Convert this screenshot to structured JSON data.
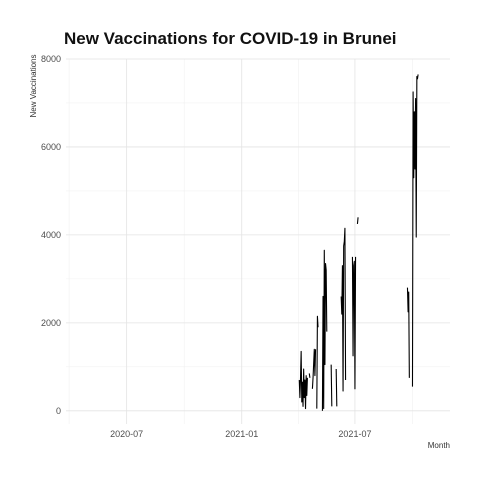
{
  "chart_data": {
    "type": "line",
    "title": "New Vaccinations for COVID-19 in Brunei",
    "xlabel": "Month",
    "ylabel": "New Vaccinations",
    "x_type": "date",
    "xlim": [
      "2020-03-26",
      "2021-11-30"
    ],
    "ylim": [
      -300,
      8000
    ],
    "x_ticks": [
      {
        "value": "2020-07-01",
        "label": "2020-07"
      },
      {
        "value": "2021-01-01",
        "label": "2021-01"
      },
      {
        "value": "2021-07-01",
        "label": "2021-07"
      }
    ],
    "y_ticks": [
      {
        "value": 0,
        "label": "0"
      },
      {
        "value": 2000,
        "label": "2000"
      },
      {
        "value": 4000,
        "label": "4000"
      },
      {
        "value": 6000,
        "label": "6000"
      },
      {
        "value": 8000,
        "label": "8000"
      }
    ],
    "grid": true,
    "legend": "none",
    "line_color": "#000000",
    "series": [
      {
        "segments": [
          [
            {
              "x": "2021-04-03",
              "y": 700
            },
            {
              "x": "2021-04-04",
              "y": 300
            },
            {
              "x": "2021-04-05",
              "y": 750
            },
            {
              "x": "2021-04-06",
              "y": 1350
            },
            {
              "x": "2021-04-07",
              "y": 200
            },
            {
              "x": "2021-04-08",
              "y": 650
            },
            {
              "x": "2021-04-09",
              "y": 100
            },
            {
              "x": "2021-04-10",
              "y": 950
            },
            {
              "x": "2021-04-11",
              "y": 300
            },
            {
              "x": "2021-04-12",
              "y": 700
            },
            {
              "x": "2021-04-13",
              "y": 50
            },
            {
              "x": "2021-04-14",
              "y": 800
            },
            {
              "x": "2021-04-15",
              "y": 350
            },
            {
              "x": "2021-04-16",
              "y": 750
            }
          ],
          [
            {
              "x": "2021-04-19",
              "y": 850
            },
            {
              "x": "2021-04-20",
              "y": 750
            }
          ],
          [
            {
              "x": "2021-04-24",
              "y": 500
            },
            {
              "x": "2021-04-25",
              "y": 750
            },
            {
              "x": "2021-04-27",
              "y": 1400
            },
            {
              "x": "2021-04-28",
              "y": 800
            },
            {
              "x": "2021-04-29",
              "y": 1400
            }
          ],
          [
            {
              "x": "2021-05-01",
              "y": 50
            },
            {
              "x": "2021-05-02",
              "y": 2150
            },
            {
              "x": "2021-05-03",
              "y": 1900
            }
          ],
          [
            {
              "x": "2021-05-10",
              "y": 0
            },
            {
              "x": "2021-05-11",
              "y": 2600
            },
            {
              "x": "2021-05-12",
              "y": 50
            },
            {
              "x": "2021-05-13",
              "y": 3650
            },
            {
              "x": "2021-05-14",
              "y": 1050
            },
            {
              "x": "2021-05-15",
              "y": 3350
            },
            {
              "x": "2021-05-16",
              "y": 3200
            },
            {
              "x": "2021-05-17",
              "y": 1800
            }
          ],
          [
            {
              "x": "2021-05-24",
              "y": 1050
            },
            {
              "x": "2021-05-25",
              "y": 100
            }
          ],
          [
            {
              "x": "2021-06-01",
              "y": 950
            },
            {
              "x": "2021-06-02",
              "y": 100
            }
          ],
          [
            {
              "x": "2021-06-09",
              "y": 2600
            },
            {
              "x": "2021-06-10",
              "y": 2200
            },
            {
              "x": "2021-06-11",
              "y": 3300
            },
            {
              "x": "2021-06-12",
              "y": 450
            },
            {
              "x": "2021-06-13",
              "y": 3750
            },
            {
              "x": "2021-06-14",
              "y": 3850
            },
            {
              "x": "2021-06-15",
              "y": 4150
            },
            {
              "x": "2021-06-16",
              "y": 700
            }
          ],
          [
            {
              "x": "2021-06-27",
              "y": 3500
            },
            {
              "x": "2021-06-28",
              "y": 1250
            },
            {
              "x": "2021-06-29",
              "y": 3300
            },
            {
              "x": "2021-06-30",
              "y": 3400
            },
            {
              "x": "2021-07-01",
              "y": 500
            },
            {
              "x": "2021-07-02",
              "y": 3500
            }
          ],
          [
            {
              "x": "2021-07-05",
              "y": 4250
            },
            {
              "x": "2021-07-06",
              "y": 4400
            }
          ],
          [
            {
              "x": "2021-09-23",
              "y": 2800
            },
            {
              "x": "2021-09-24",
              "y": 2250
            },
            {
              "x": "2021-09-25",
              "y": 2700
            },
            {
              "x": "2021-09-26",
              "y": 750
            }
          ],
          [
            {
              "x": "2021-10-01",
              "y": 550
            },
            {
              "x": "2021-10-02",
              "y": 7250
            },
            {
              "x": "2021-10-03",
              "y": 5300
            },
            {
              "x": "2021-10-04",
              "y": 6800
            },
            {
              "x": "2021-10-05",
              "y": 5500
            },
            {
              "x": "2021-10-06",
              "y": 7100
            },
            {
              "x": "2021-10-07",
              "y": 3950
            },
            {
              "x": "2021-10-08",
              "y": 7600
            },
            {
              "x": "2021-10-09",
              "y": 7550
            },
            {
              "x": "2021-10-10",
              "y": 7650
            }
          ]
        ]
      }
    ]
  }
}
